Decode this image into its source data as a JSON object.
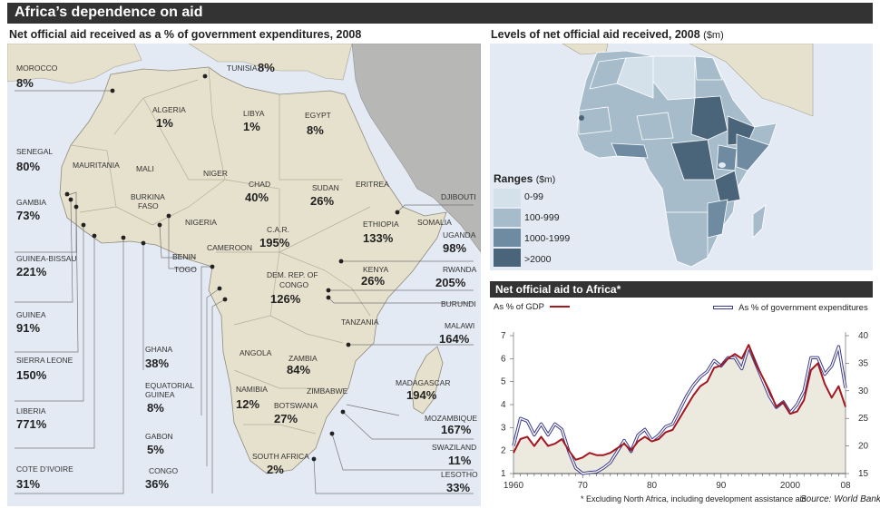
{
  "title": "Africa’s dependence on aid",
  "left_heading": "Net official aid received as a % of government expenditures, 2008",
  "right_heading": "Levels of net official aid received, 2008",
  "right_heading_unit": "($m)",
  "ranges": {
    "title": "Ranges",
    "unit": "($m)",
    "items": [
      {
        "label": "0-99",
        "color": "#d4e1ea"
      },
      {
        "label": "100-999",
        "color": "#a6bccb"
      },
      {
        "label": "1000-1999",
        "color": "#6e8ba1"
      },
      {
        "label": ">2000",
        "color": "#4a6479"
      }
    ]
  },
  "colors": {
    "land": "#e6e1cc",
    "sea": "#e3eaf4",
    "gray_land": "#b7b7b5",
    "aid_gdp": "#a31820",
    "aid_gov": "#3a3a8a"
  },
  "countries": {
    "morocco": {
      "name": "MOROCCO",
      "value": "8%"
    },
    "tunisia": {
      "name": "TUNISIA",
      "value": "8%"
    },
    "algeria": {
      "name": "ALGERIA",
      "value": "1%"
    },
    "libya": {
      "name": "LIBYA",
      "value": "1%"
    },
    "egypt": {
      "name": "EGYPT",
      "value": "8%"
    },
    "senegal": {
      "name": "SENEGAL",
      "value": "80%"
    },
    "mauritania": {
      "name": "MAURITANIA"
    },
    "mali": {
      "name": "MALI"
    },
    "niger": {
      "name": "NIGER"
    },
    "chad": {
      "name": "CHAD",
      "value": "40%"
    },
    "sudan": {
      "name": "SUDAN",
      "value": "26%"
    },
    "eritrea": {
      "name": "ERITREA"
    },
    "djibouti": {
      "name": "DJIBOUTI"
    },
    "gambia": {
      "name": "GAMBIA",
      "value": "73%"
    },
    "burkina": {
      "name": "BURKINA",
      "name2": "FASO"
    },
    "nigeria": {
      "name": "NIGERIA"
    },
    "somalia": {
      "name": "SOMALIA"
    },
    "ethiopia": {
      "name": "ETHIOPIA",
      "value": "133%"
    },
    "car": {
      "name": "C.A.R.",
      "value": "195%"
    },
    "uganda": {
      "name": "UGANDA",
      "value": "98%"
    },
    "guinea_bissau": {
      "name": "GUINEA-BISSAU",
      "value": "221%"
    },
    "benin": {
      "name": "BENIN"
    },
    "cameroon": {
      "name": "CAMEROON"
    },
    "togo": {
      "name": "TOGO"
    },
    "drc": {
      "name": "DEM. REP. OF",
      "name2": "CONGO",
      "value": "126%"
    },
    "kenya": {
      "name": "KENYA",
      "value": "26%"
    },
    "rwanda": {
      "name": "RWANDA",
      "value": "205%"
    },
    "burundi": {
      "name": "BURUNDI"
    },
    "guinea": {
      "name": "GUINEA",
      "value": "91%"
    },
    "tanzania": {
      "name": "TANZANIA"
    },
    "malawi": {
      "name": "MALAWI",
      "value": "164%"
    },
    "ghana": {
      "name": "GHANA",
      "value": "38%"
    },
    "angola": {
      "name": "ANGOLA"
    },
    "sierra_leone": {
      "name": "SIERRA LEONE",
      "value": "150%"
    },
    "zambia": {
      "name": "ZAMBIA",
      "value": "84%"
    },
    "equatorial_guinea": {
      "name": "EQUATORIAL",
      "name2": "GUINEA",
      "value": "8%"
    },
    "madagascar": {
      "name": "MADAGASCAR",
      "value": "194%"
    },
    "namibia": {
      "name": "NAMIBIA",
      "value": "12%"
    },
    "zimbabwe": {
      "name": "ZIMBABWE"
    },
    "liberia": {
      "name": "LIBERIA",
      "value": "771%"
    },
    "botswana": {
      "name": "BOTSWANA",
      "value": "27%"
    },
    "mozambique": {
      "name": "MOZAMBIQUE",
      "value": "167%"
    },
    "gabon": {
      "name": "GABON",
      "value": "5%"
    },
    "swaziland": {
      "name": "SWAZILAND",
      "value": "11%"
    },
    "south_africa": {
      "name": "SOUTH AFRICA",
      "value": "2%"
    },
    "cote_divoire": {
      "name": "COTE D’IVOIRE",
      "value": "31%"
    },
    "congo": {
      "name": "CONGO",
      "value": "36%"
    },
    "lesotho": {
      "name": "LESOTHO",
      "value": "33%"
    }
  },
  "chart": {
    "title": "Net official aid to Africa*",
    "legend_gdp": "As % of GDP",
    "legend_gov": "As % of government expenditures",
    "footnote": "* Excluding North Africa, including development assistance aid",
    "source": "Source: World Bank"
  },
  "chart_data": {
    "type": "line",
    "x": [
      1960,
      1961,
      1962,
      1963,
      1964,
      1965,
      1966,
      1967,
      1968,
      1969,
      1970,
      1971,
      1972,
      1973,
      1974,
      1975,
      1976,
      1977,
      1978,
      1979,
      1980,
      1981,
      1982,
      1983,
      1984,
      1985,
      1986,
      1987,
      1988,
      1989,
      1990,
      1991,
      1992,
      1993,
      1994,
      1995,
      1996,
      1997,
      1998,
      1999,
      2000,
      2001,
      2002,
      2003,
      2004,
      2005,
      2006,
      2007,
      2008
    ],
    "x_tick_labels": [
      "1960",
      "70",
      "80",
      "90",
      "2000",
      "08"
    ],
    "x_ticks": [
      1960,
      1970,
      1980,
      1990,
      2000,
      2008
    ],
    "series": [
      {
        "name": "As % of GDP",
        "axis": "left",
        "values": [
          1.9,
          2.5,
          2.6,
          2.2,
          2.6,
          2.2,
          2.3,
          2.5,
          2.0,
          1.6,
          1.7,
          1.9,
          1.8,
          1.8,
          1.9,
          2.1,
          2.3,
          2.0,
          2.4,
          2.6,
          2.4,
          2.5,
          2.8,
          2.9,
          3.4,
          3.9,
          4.4,
          4.8,
          5.0,
          5.6,
          5.7,
          6.0,
          6.2,
          6.0,
          6.6,
          5.8,
          5.2,
          4.6,
          3.9,
          4.1,
          3.6,
          3.7,
          4.2,
          5.5,
          5.8,
          4.9,
          4.3,
          4.8,
          3.9
        ]
      },
      {
        "name": "As % of government expenditures",
        "axis": "right",
        "values": [
          20,
          25,
          24.5,
          22,
          24,
          22,
          24,
          23,
          19,
          16,
          15,
          15.2,
          15.3,
          16,
          17,
          19,
          21,
          19,
          22,
          23,
          21,
          22,
          23.5,
          24,
          26.5,
          29,
          31,
          32.5,
          33.5,
          35.5,
          34.5,
          36,
          36,
          34,
          38,
          35,
          32,
          29,
          27,
          28,
          26,
          27.5,
          30,
          36,
          36,
          33,
          34.5,
          38,
          30.5
        ]
      }
    ],
    "y_left": {
      "ticks": [
        1,
        2,
        3,
        4,
        5,
        6,
        7
      ],
      "range": [
        1,
        7
      ]
    },
    "y_right": {
      "ticks": [
        15,
        20,
        25,
        30,
        35,
        40
      ],
      "range": [
        15,
        40
      ]
    },
    "x_range": [
      1960,
      2008
    ],
    "grid": false,
    "legend": "top"
  }
}
